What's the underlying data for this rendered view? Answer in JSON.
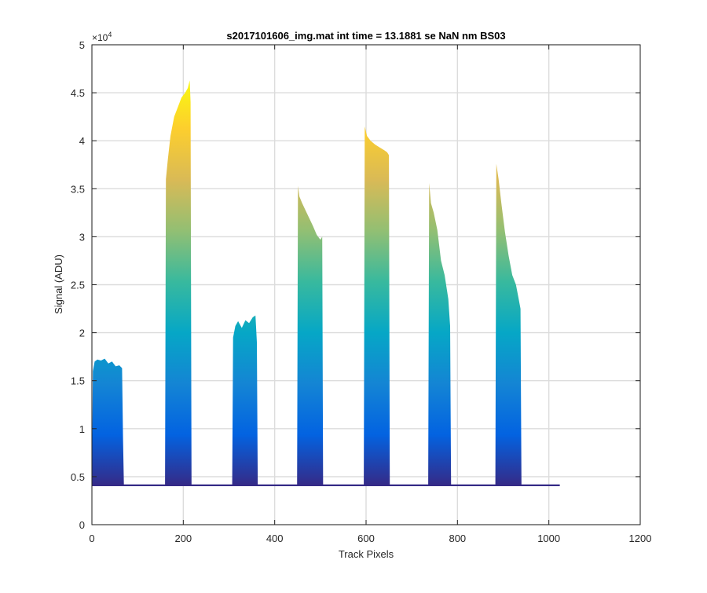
{
  "chart_data": {
    "type": "area",
    "title": "s2017101606_img.mat int time = 13.1881 se  NaN nm BS03",
    "xlabel": "Track Pixels",
    "ylabel": "Signal (ADU)",
    "y_exponent_label": "×10",
    "y_exponent_power": "4",
    "xlim": [
      0,
      1200
    ],
    "ylim": [
      0,
      50000
    ],
    "xticks": [
      0,
      200,
      400,
      600,
      800,
      1000,
      1200
    ],
    "yticks": [
      0,
      5000,
      10000,
      15000,
      20000,
      25000,
      30000,
      35000,
      40000,
      45000,
      50000
    ],
    "xtick_labels": [
      "0",
      "200",
      "400",
      "600",
      "800",
      "1000",
      "1200"
    ],
    "ytick_labels": [
      "0",
      "0.5",
      "1",
      "1.5",
      "2",
      "2.5",
      "3",
      "3.5",
      "4",
      "4.5",
      "5"
    ],
    "grid": true,
    "legend": "none",
    "colormap": "parula",
    "colormap_stops": [
      "#352a87",
      "#0363e1",
      "#1485d4",
      "#06a7c6",
      "#38b99e",
      "#92bf73",
      "#d9ba56",
      "#fcce2e",
      "#f9fb0e"
    ],
    "baseline": 4100,
    "series": [
      {
        "x": [
          0,
          2,
          6,
          12,
          20,
          28,
          36,
          44,
          52,
          60,
          66,
          68,
          70
        ],
        "y": [
          4500,
          16000,
          17000,
          17200,
          17100,
          17300,
          16800,
          17000,
          16500,
          16600,
          16300,
          9000,
          4200
        ]
      },
      {
        "x": [
          160,
          162,
          166,
          172,
          180,
          188,
          196,
          204,
          210,
          214,
          216,
          218
        ],
        "y": [
          4600,
          36000,
          38000,
          40500,
          42500,
          43500,
          44500,
          45000,
          45500,
          46300,
          44000,
          4300
        ]
      },
      {
        "x": [
          307,
          309,
          314,
          320,
          328,
          336,
          344,
          352,
          358,
          361,
          363
        ],
        "y": [
          4400,
          19500,
          20700,
          21200,
          20500,
          21300,
          21000,
          21600,
          21800,
          19000,
          4300
        ]
      },
      {
        "x": [
          449,
          451,
          454,
          460,
          468,
          476,
          484,
          492,
          500,
          504,
          506
        ],
        "y": [
          4400,
          35300,
          34200,
          33500,
          32700,
          31900,
          31100,
          30200,
          29700,
          30000,
          4300
        ]
      },
      {
        "x": [
          595,
          597,
          602,
          610,
          620,
          630,
          640,
          646,
          650,
          652
        ],
        "y": [
          4500,
          41500,
          40500,
          40000,
          39600,
          39300,
          39000,
          38800,
          38500,
          4300
        ]
      },
      {
        "x": [
          736,
          738,
          742,
          748,
          756,
          764,
          772,
          780,
          784,
          786
        ],
        "y": [
          4400,
          35600,
          33500,
          32500,
          30700,
          27500,
          26000,
          23500,
          20700,
          4300
        ]
      },
      {
        "x": [
          883,
          885,
          890,
          896,
          904,
          912,
          920,
          928,
          934,
          938,
          940
        ],
        "y": [
          4400,
          37600,
          36000,
          33500,
          30500,
          28000,
          26000,
          25000,
          23500,
          22500,
          4300
        ]
      }
    ]
  }
}
